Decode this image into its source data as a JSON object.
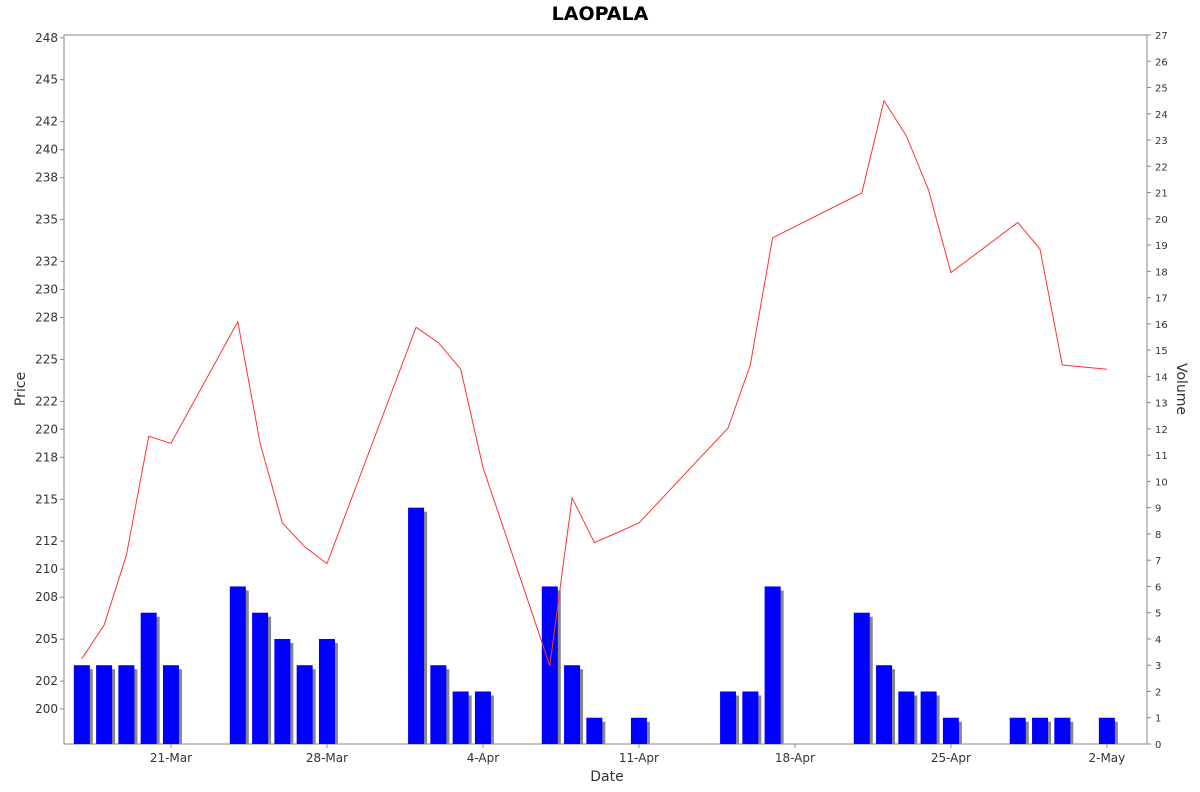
{
  "chart_data": {
    "type": "bar+line",
    "title": "LAOPALA",
    "xlabel": "Date",
    "ylabel": "Price",
    "y2label": "Volume",
    "x_tick_labels": [
      "21-Mar",
      "28-Mar",
      "4-Apr",
      "11-Apr",
      "18-Apr",
      "25-Apr",
      "2-May"
    ],
    "x_tick_days": [
      21,
      28,
      35,
      42,
      49,
      56,
      63
    ],
    "x_range_days": [
      16.2,
      64.8
    ],
    "ylim": [
      197.5,
      248.2
    ],
    "y_ticks": [
      200,
      202,
      205,
      208,
      210,
      212,
      215,
      218,
      220,
      222,
      225,
      228,
      230,
      232,
      235,
      238,
      240,
      242,
      245,
      248
    ],
    "y2lim": [
      0,
      27
    ],
    "y2_ticks": [
      0,
      1,
      2,
      3,
      4,
      5,
      6,
      7,
      8,
      9,
      10,
      11,
      12,
      13,
      14,
      15,
      16,
      17,
      18,
      19,
      20,
      21,
      22,
      23,
      24,
      25,
      26,
      27
    ],
    "grid": false,
    "colors": {
      "price_line": "#ff3333",
      "volume_bar": "#0000ff",
      "volume_shadow": "#888888",
      "axis": "#888888"
    },
    "series": [
      {
        "kind": "line",
        "axis": "left",
        "days": [
          17,
          18,
          19,
          20,
          21,
          24,
          25,
          26,
          27,
          28,
          32,
          33,
          34,
          35,
          38,
          39,
          40,
          42,
          46,
          47,
          48,
          52,
          53,
          54,
          55,
          56,
          59,
          60,
          61,
          63
        ],
        "values": [
          203.6,
          206.0,
          211.0,
          219.5,
          219.0,
          227.7,
          219.0,
          213.3,
          211.6,
          210.4,
          227.3,
          226.2,
          224.3,
          217.3,
          203.1,
          215.1,
          211.9,
          213.3,
          220.1,
          224.6,
          233.7,
          236.9,
          243.5,
          241.0,
          237.1,
          231.2,
          234.8,
          232.9,
          224.6,
          224.3
        ]
      },
      {
        "kind": "bar",
        "axis": "right",
        "days": [
          17,
          18,
          19,
          20,
          21,
          24,
          25,
          26,
          27,
          28,
          32,
          33,
          34,
          35,
          38,
          39,
          40,
          42,
          46,
          47,
          48,
          52,
          53,
          54,
          55,
          56,
          59,
          60,
          61,
          63
        ],
        "values": [
          3,
          3,
          3,
          5,
          3,
          6,
          5,
          4,
          3,
          4,
          9,
          3,
          2,
          2,
          6,
          3,
          1,
          1,
          2,
          2,
          6,
          5,
          3,
          2,
          2,
          1,
          1,
          1,
          1,
          1
        ]
      }
    ]
  }
}
